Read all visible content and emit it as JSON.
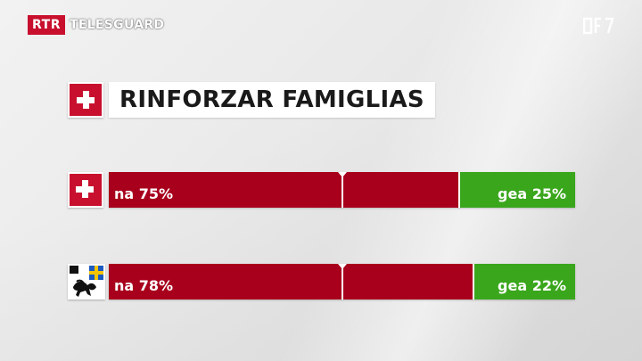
{
  "broadcaster": {
    "logo": "RTR",
    "program": "TELESGUARD",
    "watermark_icon": "channel-watermark-icon"
  },
  "header": {
    "title": "RINFORZAR FAMIGLIAS",
    "icon": "swiss-cross-icon"
  },
  "colors": {
    "yes": "#a8001c",
    "no": "#3aa61c",
    "swiss_red": "#c8102e"
  },
  "chart_data": {
    "type": "bar",
    "orientation": "horizontal",
    "stacked": true,
    "title": "RINFORZAR FAMIGLIAS",
    "xlim": [
      0,
      100
    ],
    "midpoint_marker": 50,
    "rows": [
      {
        "icon": "swiss-cross-icon",
        "yes_label": "na 75%",
        "no_label": "gea 25%",
        "yes": 75,
        "no": 25
      },
      {
        "icon": "grisons-coat-of-arms-icon",
        "yes_label": "na 78%",
        "no_label": "gea 22%",
        "yes": 78,
        "no": 22
      }
    ]
  }
}
